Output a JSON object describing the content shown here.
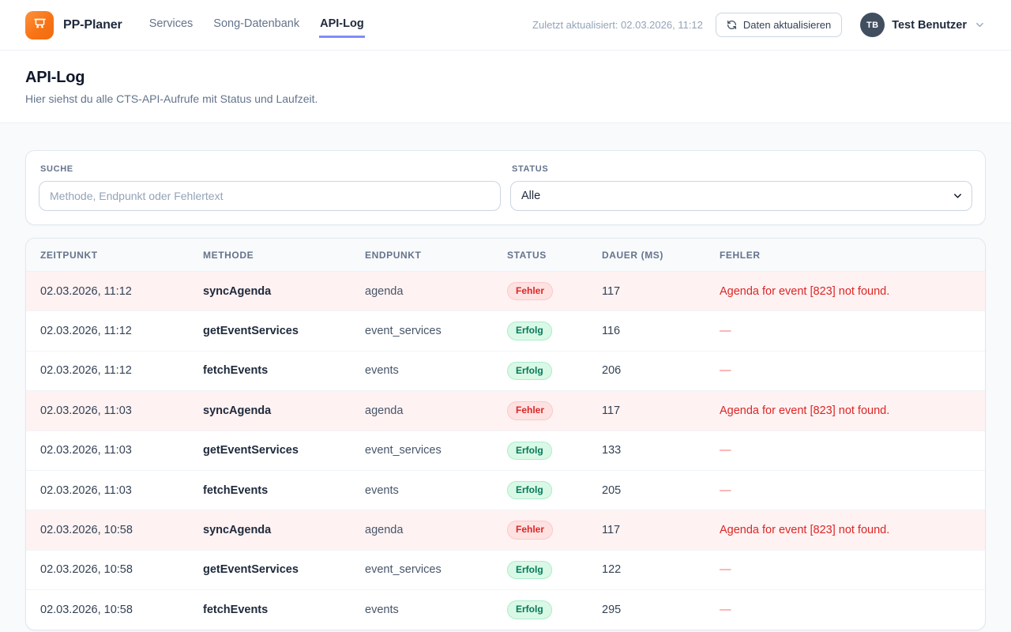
{
  "header": {
    "brand": "PP-Planer",
    "nav": [
      {
        "label": "Services",
        "active": false
      },
      {
        "label": "Song-Datenbank",
        "active": false
      },
      {
        "label": "API-Log",
        "active": true
      }
    ],
    "last_updated": "Zuletzt aktualisiert: 02.03.2026, 11:12",
    "refresh_button_label": "Daten aktualisieren",
    "user": {
      "initials": "TB",
      "name": "Test Benutzer"
    }
  },
  "page": {
    "title": "API-Log",
    "subtitle": "Hier siehst du alle CTS-API-Aufrufe mit Status und Laufzeit."
  },
  "filters": {
    "search_label": "Suche",
    "search_placeholder": "Methode, Endpunkt oder Fehlertext",
    "search_value": "",
    "status_label": "Status",
    "status_value": "Alle"
  },
  "table": {
    "columns": [
      "Zeitpunkt",
      "Methode",
      "Endpunkt",
      "Status",
      "Dauer (ms)",
      "Fehler"
    ],
    "rows": [
      {
        "zeitpunkt": "02.03.2026, 11:12",
        "methode": "syncAgenda",
        "endpunkt": "agenda",
        "status": "Fehler",
        "dauer": "117",
        "fehler": "Agenda for event [823] not found."
      },
      {
        "zeitpunkt": "02.03.2026, 11:12",
        "methode": "getEventServices",
        "endpunkt": "event_services",
        "status": "Erfolg",
        "dauer": "116",
        "fehler": "—"
      },
      {
        "zeitpunkt": "02.03.2026, 11:12",
        "methode": "fetchEvents",
        "endpunkt": "events",
        "status": "Erfolg",
        "dauer": "206",
        "fehler": "—"
      },
      {
        "zeitpunkt": "02.03.2026, 11:03",
        "methode": "syncAgenda",
        "endpunkt": "agenda",
        "status": "Fehler",
        "dauer": "117",
        "fehler": "Agenda for event [823] not found."
      },
      {
        "zeitpunkt": "02.03.2026, 11:03",
        "methode": "getEventServices",
        "endpunkt": "event_services",
        "status": "Erfolg",
        "dauer": "133",
        "fehler": "—"
      },
      {
        "zeitpunkt": "02.03.2026, 11:03",
        "methode": "fetchEvents",
        "endpunkt": "events",
        "status": "Erfolg",
        "dauer": "205",
        "fehler": "—"
      },
      {
        "zeitpunkt": "02.03.2026, 10:58",
        "methode": "syncAgenda",
        "endpunkt": "agenda",
        "status": "Fehler",
        "dauer": "117",
        "fehler": "Agenda for event [823] not found."
      },
      {
        "zeitpunkt": "02.03.2026, 10:58",
        "methode": "getEventServices",
        "endpunkt": "event_services",
        "status": "Erfolg",
        "dauer": "122",
        "fehler": "—"
      },
      {
        "zeitpunkt": "02.03.2026, 10:58",
        "methode": "fetchEvents",
        "endpunkt": "events",
        "status": "Erfolg",
        "dauer": "295",
        "fehler": "—"
      }
    ]
  },
  "colors": {
    "accent_orange": "#f97316",
    "active_tab_underline": "#818cf8",
    "error_text": "#dc2626",
    "error_badge_bg": "#fee2e2",
    "error_row_bg": "#fef2f2",
    "success_text": "#047857",
    "success_badge_bg": "#d9f9e6",
    "avatar_bg": "#414e60"
  }
}
